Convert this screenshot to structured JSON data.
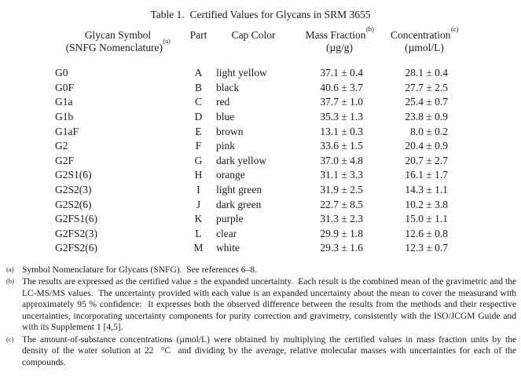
{
  "title": "Table 1.  Certified Values for Glycans in SRM 3655",
  "table": {
    "headers": {
      "glycan": {
        "line1": "Glycan Symbol",
        "line2": "(SNFG Nomenclature)",
        "sup": "(a)"
      },
      "part": "Part",
      "cap_color": "Cap Color",
      "mass_fraction": {
        "label": "Mass Fraction",
        "sup": "(b)",
        "unit": "(µg/g)"
      },
      "concentration": {
        "label": "Concentration",
        "sup": "(c)",
        "unit": "(µmol/L)"
      }
    },
    "rows": [
      {
        "symbol": "G0",
        "part": "A",
        "cap_color": "light yellow",
        "mass_fraction": "37.1 ± 0.4",
        "concentration": "28.1 ± 0.4"
      },
      {
        "symbol": "G0F",
        "part": "B",
        "cap_color": "black",
        "mass_fraction": "40.6 ± 3.7",
        "concentration": "27.7 ± 2.5"
      },
      {
        "symbol": "G1a",
        "part": "C",
        "cap_color": "red",
        "mass_fraction": "37.7 ± 1.0",
        "concentration": "25.4 ± 0.7"
      },
      {
        "symbol": "G1b",
        "part": "D",
        "cap_color": "blue",
        "mass_fraction": "35.3 ± 1.3",
        "concentration": "23.8 ± 0.9"
      },
      {
        "symbol": "G1aF",
        "part": "E",
        "cap_color": "brown",
        "mass_fraction": "13.1 ± 0.3",
        "concentration": "8.0 ± 0.2"
      },
      {
        "symbol": "G2",
        "part": "F",
        "cap_color": "pink",
        "mass_fraction": "33.6 ± 1.5",
        "concentration": "20.4 ± 0.9"
      },
      {
        "symbol": "G2F",
        "part": "G",
        "cap_color": "dark yellow",
        "mass_fraction": "37.0 ± 4.8",
        "concentration": "20.7 ± 2.7"
      },
      {
        "symbol": "G2S1(6)",
        "part": "H",
        "cap_color": "orange",
        "mass_fraction": "31.1 ± 3.3",
        "concentration": "16.1 ± 1.7"
      },
      {
        "symbol": "G2S2(3)",
        "part": "I",
        "cap_color": "light green",
        "mass_fraction": "31.9 ± 2.5",
        "concentration": "14.3 ± 1.1"
      },
      {
        "symbol": "G2S2(6)",
        "part": "J",
        "cap_color": "dark green",
        "mass_fraction": "22.7 ± 8.5",
        "concentration": "10.2 ± 3.8"
      },
      {
        "symbol": "G2FS1(6)",
        "part": "K",
        "cap_color": "purple",
        "mass_fraction": "31.3 ± 2.3",
        "concentration": "15.0 ± 1.1"
      },
      {
        "symbol": "G2FS2(3)",
        "part": "L",
        "cap_color": "clear",
        "mass_fraction": "29.9 ± 1.8",
        "concentration": "12.6 ± 0.8"
      },
      {
        "symbol": "G2FS2(6)",
        "part": "M",
        "cap_color": "white",
        "mass_fraction": "29.3 ± 1.6",
        "concentration": "12.3 ± 0.7"
      }
    ]
  },
  "footnotes": [
    {
      "marker": "(a)",
      "text": "Symbol Nomenclature for Glycans (SNFG).  See references 6–8."
    },
    {
      "marker": "(b)",
      "text": "The results are expressed as the certified value ± the expanded uncertainty.  Each result is the combined mean of the gravimetric and the LC-MS/MS values.  The uncertainty provided with each value is an expanded uncertainty about the mean to cover the measurand with approximately 95 % confidence:  It expresses both the observed difference between the results from the methods and their respective uncertainties, incorporating uncertainty components for purity correction and gravimetry, consistently with the ISO/JCGM Guide and with its Supplement 1 [4,5]."
    },
    {
      "marker": "(c)",
      "text": "The amount-of-substance concentrations (µmol/L) were obtained by multiplying the certified values in mass fraction units by the density of the water solution at 22  °C  and dividing by the average, relative molecular masses with uncertainties for each of the compounds."
    }
  ]
}
